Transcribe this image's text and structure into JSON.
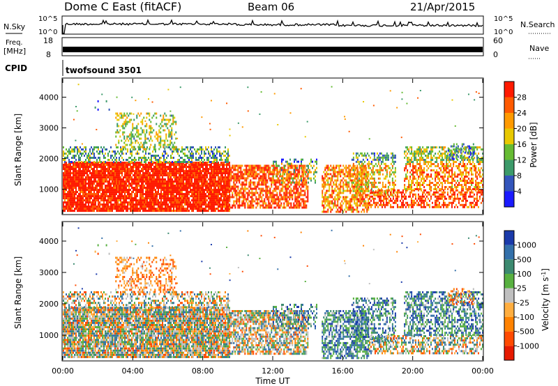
{
  "header": {
    "station": "Dome C East (fitACF)",
    "beam": "Beam 06",
    "date": "21/Apr/2015"
  },
  "top_strips": {
    "nsky_label": "N.Sky",
    "nsky_ticks": [
      "10^5",
      "10^0"
    ],
    "nsearch_label": "N.Search",
    "nsearch_ticks": [
      "10^5",
      "10^0"
    ],
    "freq_label_1": "Freq.",
    "freq_label_2": "[MHz]",
    "freq_ticks": [
      "18",
      "8"
    ],
    "nave_label": "Nave",
    "nave_ticks": [
      "60",
      "0"
    ],
    "cpid_label": "CPID",
    "cpid_value": "twofsound 3501"
  },
  "chart_data": [
    {
      "type": "heatmap",
      "panel": "power",
      "ylabel": "Slant Range [km]",
      "ylim": [
        200,
        4600
      ],
      "yticks": [
        "1000",
        "2000",
        "3000",
        "4000"
      ],
      "colorbar_label": "Power [dB]",
      "colorbar_ticks": [
        "4",
        "8",
        "12",
        "16",
        "20",
        "24",
        "28"
      ],
      "colorbar_colors": [
        "#1a1aff",
        "#3355bb",
        "#3c9a6a",
        "#66bb33",
        "#e8c800",
        "#ff9a00",
        "#ff5a00",
        "#ff1a00"
      ]
    },
    {
      "type": "heatmap",
      "panel": "velocity",
      "ylabel": "Slant Range [km]",
      "ylim": [
        200,
        4600
      ],
      "yticks": [
        "1000",
        "2000",
        "3000",
        "4000"
      ],
      "colorbar_label": "Velocity [m s⁻¹]",
      "colorbar_ticks": [
        "1000",
        "500",
        "100",
        "25",
        "-25",
        "-100",
        "-500",
        "-1000"
      ],
      "colorbar_colors": [
        "#1a3aaa",
        "#3370aa",
        "#3c8a70",
        "#58b040",
        "#bfbfbf",
        "#ffae40",
        "#ff8200",
        "#ff4a00",
        "#e61a00"
      ]
    }
  ],
  "x_axis": {
    "label": "Time UT",
    "ticks": [
      "00:00",
      "04:00",
      "08:00",
      "12:00",
      "16:00",
      "20:00",
      "00:00"
    ]
  }
}
